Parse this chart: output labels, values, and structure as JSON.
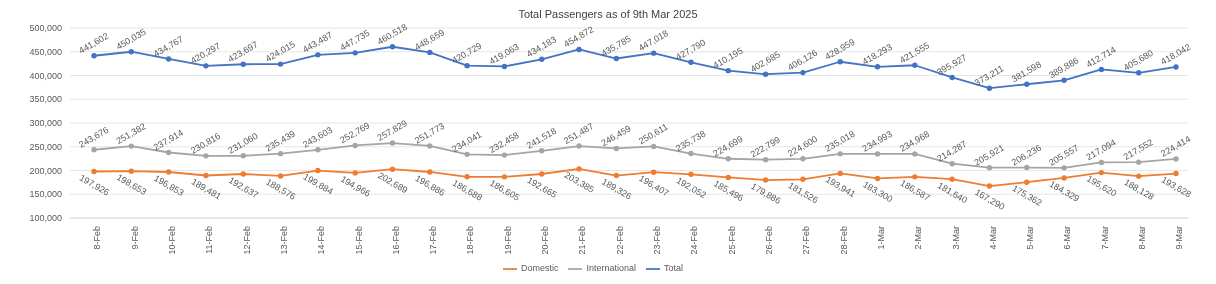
{
  "chart_data": {
    "type": "line",
    "title": "Total Passengers as of 9th Mar 2025",
    "categories": [
      "8-Feb",
      "9-Feb",
      "10-Feb",
      "11-Feb",
      "12-Feb",
      "13-Feb",
      "14-Feb",
      "15-Feb",
      "16-Feb",
      "17-Feb",
      "18-Feb",
      "19-Feb",
      "20-Feb",
      "21-Feb",
      "22-Feb",
      "23-Feb",
      "24-Feb",
      "25-Feb",
      "26-Feb",
      "27-Feb",
      "28-Feb",
      "1-Mar",
      "2-Mar",
      "3-Mar",
      "4-Mar",
      "5-Mar",
      "6-Mar",
      "7-Mar",
      "8-Mar",
      "9-Mar"
    ],
    "series": [
      {
        "name": "Total",
        "color": "#4472c4",
        "values": [
          441602,
          450035,
          434767,
          420297,
          423697,
          424015,
          443487,
          447735,
          460518,
          448659,
          420729,
          419063,
          434183,
          454872,
          435785,
          447018,
          427790,
          410195,
          402685,
          406126,
          428959,
          418293,
          421555,
          395927,
          373211,
          381598,
          389886,
          412714,
          405680,
          418042
        ],
        "value_labels": [
          "441,602",
          "450,035",
          "434,767",
          "420,297",
          "423,697",
          "424,015",
          "443,487",
          "447,735",
          "460,518",
          "448,659",
          "420,729",
          "419,063",
          "434,183",
          "454,872",
          "435,785",
          "447,018",
          "427,790",
          "410,195",
          "402,685",
          "406,126",
          "428,959",
          "418,293",
          "421,555",
          "395,927",
          "373,211",
          "381,598",
          "389,886",
          "412,714",
          "405,680",
          "418,042"
        ]
      },
      {
        "name": "Domestic",
        "color": "#ed7d31",
        "values": [
          197926,
          198653,
          196853,
          189481,
          192637,
          188576,
          199884,
          194966,
          202689,
          196886,
          186688,
          186605,
          192665,
          203385,
          189326,
          196407,
          192052,
          185496,
          179886,
          181526,
          193941,
          183300,
          186587,
          181640,
          167290,
          175362,
          184329,
          195620,
          188128,
          193628
        ],
        "value_labels": [
          "197,926",
          "198,653",
          "196,853",
          "189,481",
          "192,637",
          "188,576",
          "199,884",
          "194,966",
          "202,689",
          "196,886",
          "186,688",
          "186,605",
          "192,665",
          "203,385",
          "189,326",
          "196,407",
          "192,052",
          "185,496",
          "179,886",
          "181,526",
          "193,941",
          "183,300",
          "186,587",
          "181,640",
          "167,290",
          "175,362",
          "184,329",
          "195,620",
          "188,128",
          "193,628"
        ]
      },
      {
        "name": "International",
        "color": "#a5a5a5",
        "values": [
          243676,
          251382,
          237914,
          230816,
          231060,
          235439,
          243603,
          252769,
          257829,
          251773,
          234041,
          232458,
          241518,
          251487,
          246459,
          250611,
          235738,
          224699,
          222799,
          224600,
          235018,
          234993,
          234968,
          214287,
          205921,
          206236,
          205557,
          217094,
          217552,
          224414
        ],
        "value_labels": [
          "243,676",
          "251,382",
          "237,914",
          "230,816",
          "231,060",
          "235,439",
          "243,603",
          "252,769",
          "257,829",
          "251,773",
          "234,041",
          "232,458",
          "241,518",
          "251,487",
          "246,459",
          "250,611",
          "235,738",
          "224,699",
          "222,799",
          "224,600",
          "235,018",
          "234,993",
          "234,968",
          "214,287",
          "205,921",
          "206,236",
          "205,557",
          "217,094",
          "217,552",
          "224,414"
        ]
      }
    ],
    "ylim": [
      100000,
      500000
    ],
    "yticks": [
      {
        "value": 100000,
        "label": "100,000"
      },
      {
        "value": 150000,
        "label": "150,000"
      },
      {
        "value": 200000,
        "label": "200,000"
      },
      {
        "value": 250000,
        "label": "250,000"
      },
      {
        "value": 300000,
        "label": "300,000"
      },
      {
        "value": 350000,
        "label": "350,000"
      },
      {
        "value": 400000,
        "label": "400,000"
      },
      {
        "value": 450000,
        "label": "450,000"
      },
      {
        "value": 500000,
        "label": "500,000"
      }
    ],
    "grid": "y",
    "legend": "bottom",
    "marker": "circle",
    "line_style": "solid"
  }
}
